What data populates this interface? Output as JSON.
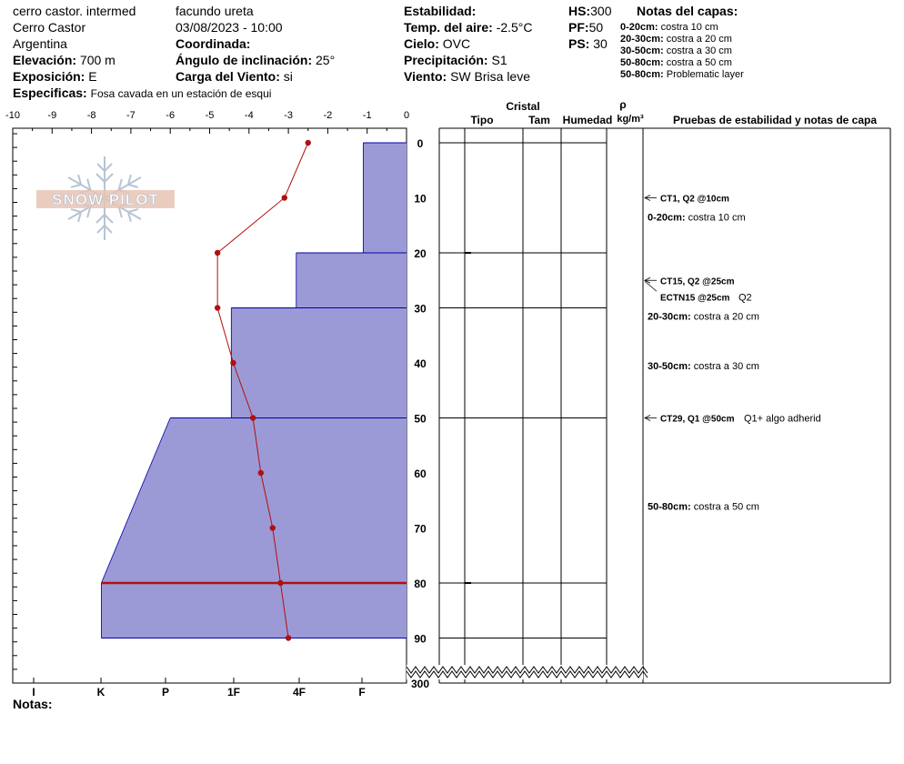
{
  "header": {
    "site": "cerro castor. intermed",
    "observer": "facundo ureta",
    "location": "Cerro Castor",
    "datetime": "03/08/2023 - 10:00",
    "country": "Argentina",
    "coord_label": "Coordinada:",
    "elev_label": "Elevación:",
    "elev_value": "700 m",
    "slope_label": "Ángulo de inclinación:",
    "slope_value": "25°",
    "aspect_label": "Exposición:",
    "aspect_value": "E",
    "windload_label": "Carga del Viento:",
    "windload_value": "si",
    "specifics_label": "Especificas:",
    "specifics_value": "Fosa cavada en un estación de esqui",
    "stability_label": "Estabilidad:",
    "airtemp_label": "Temp. del aire:",
    "airtemp_value": "-2.5°C",
    "sky_label": "Cielo:",
    "sky_value": "OVC",
    "precip_label": "Precipitación:",
    "precip_value": "S1",
    "wind_label": "Viento:",
    "wind_value": "SW Brisa leve",
    "hs_label": "HS:",
    "hs_value": "300",
    "pf_label": "PF:",
    "pf_value": "50",
    "ps_label": "PS:",
    "ps_value": "30",
    "layer_notes_title": "Notas del capas:",
    "layer_notes": [
      {
        "range": "0-20cm:",
        "text": "costra 10 cm"
      },
      {
        "range": "20-30cm:",
        "text": "costra a 20 cm"
      },
      {
        "range": "30-50cm:",
        "text": "costra a 30 cm"
      },
      {
        "range": "50-80cm:",
        "text": "costra a 50 cm"
      },
      {
        "range": "50-80cm:",
        "text": "Problematic layer"
      }
    ]
  },
  "logo": {
    "text": "SNOW PILOT"
  },
  "table_headers": {
    "crystal": "Cristal",
    "tipo": "Tipo",
    "tam": "Tam",
    "humedad": "Humedad",
    "rho": "ρ",
    "density_unit": "kg/m³",
    "tests": "Pruebas de estabilidad y notas de capa"
  },
  "notes_label": "Notas:",
  "tests": [
    {
      "depth": 10,
      "label": "CT1, Q2 @10cm",
      "extra": ""
    },
    {
      "depth": 25,
      "label": "CT15, Q2 @25cm",
      "extra": ""
    },
    {
      "depth": 25,
      "label": "ECTN15 @25cm",
      "extra": "Q2"
    },
    {
      "depth": 50,
      "label": "CT29, Q1 @50cm",
      "extra": "Q1+ algo adherid"
    }
  ],
  "layer_comments": [
    {
      "depth": 13.5,
      "range": "0-20cm:",
      "text": "costra 10 cm"
    },
    {
      "depth": 31.5,
      "range": "20-30cm:",
      "text": "costra a 20 cm"
    },
    {
      "depth": 40.5,
      "range": "30-50cm:",
      "text": "costra a 30 cm"
    },
    {
      "depth": 66,
      "range": "50-80cm:",
      "text": "costra a 50 cm"
    }
  ],
  "chart_data": {
    "type": "snow_profile",
    "temperature_axis": {
      "label": "",
      "ticks": [
        "-10",
        "-9",
        "-8",
        "-7",
        "-6",
        "-5",
        "-4",
        "-3",
        "-2",
        "-1",
        "0"
      ],
      "xlim": [
        -10,
        0
      ]
    },
    "depth_axis": {
      "ticks": [
        "0",
        "10",
        "20",
        "30",
        "40",
        "50",
        "60",
        "70",
        "80",
        "90",
        "300"
      ],
      "unit": "cm"
    },
    "hardness_axis": {
      "ticks": [
        "I",
        "K",
        "P",
        "1F",
        "4F",
        "F"
      ]
    },
    "temperature_profile": {
      "depth": [
        0,
        10,
        20,
        30,
        40,
        50,
        60,
        70,
        80,
        90
      ],
      "temp": [
        -2.5,
        -3.1,
        -4.8,
        -4.8,
        -4.4,
        -3.9,
        -3.7,
        -3.4,
        -3.2,
        -3.0
      ]
    },
    "hardness_layers": [
      {
        "top": 0,
        "bottom": 20,
        "hardness": "F"
      },
      {
        "top": 20,
        "bottom": 30,
        "hardness": "4F"
      },
      {
        "top": 30,
        "bottom": 50,
        "hardness": "1F+"
      },
      {
        "top": 50,
        "bottom": 80,
        "hardness": "P to K",
        "temp_width_top": -6.0,
        "temp_width_bottom": -7.75
      },
      {
        "top": 80,
        "bottom": 90,
        "hardness": "K"
      }
    ],
    "critical_layer_depth": 80,
    "colors": {
      "layer_fill": "#9c9ad6",
      "layer_stroke": "#0000aa",
      "temp_line": "#b01010",
      "critical_line": "#b01010"
    }
  }
}
